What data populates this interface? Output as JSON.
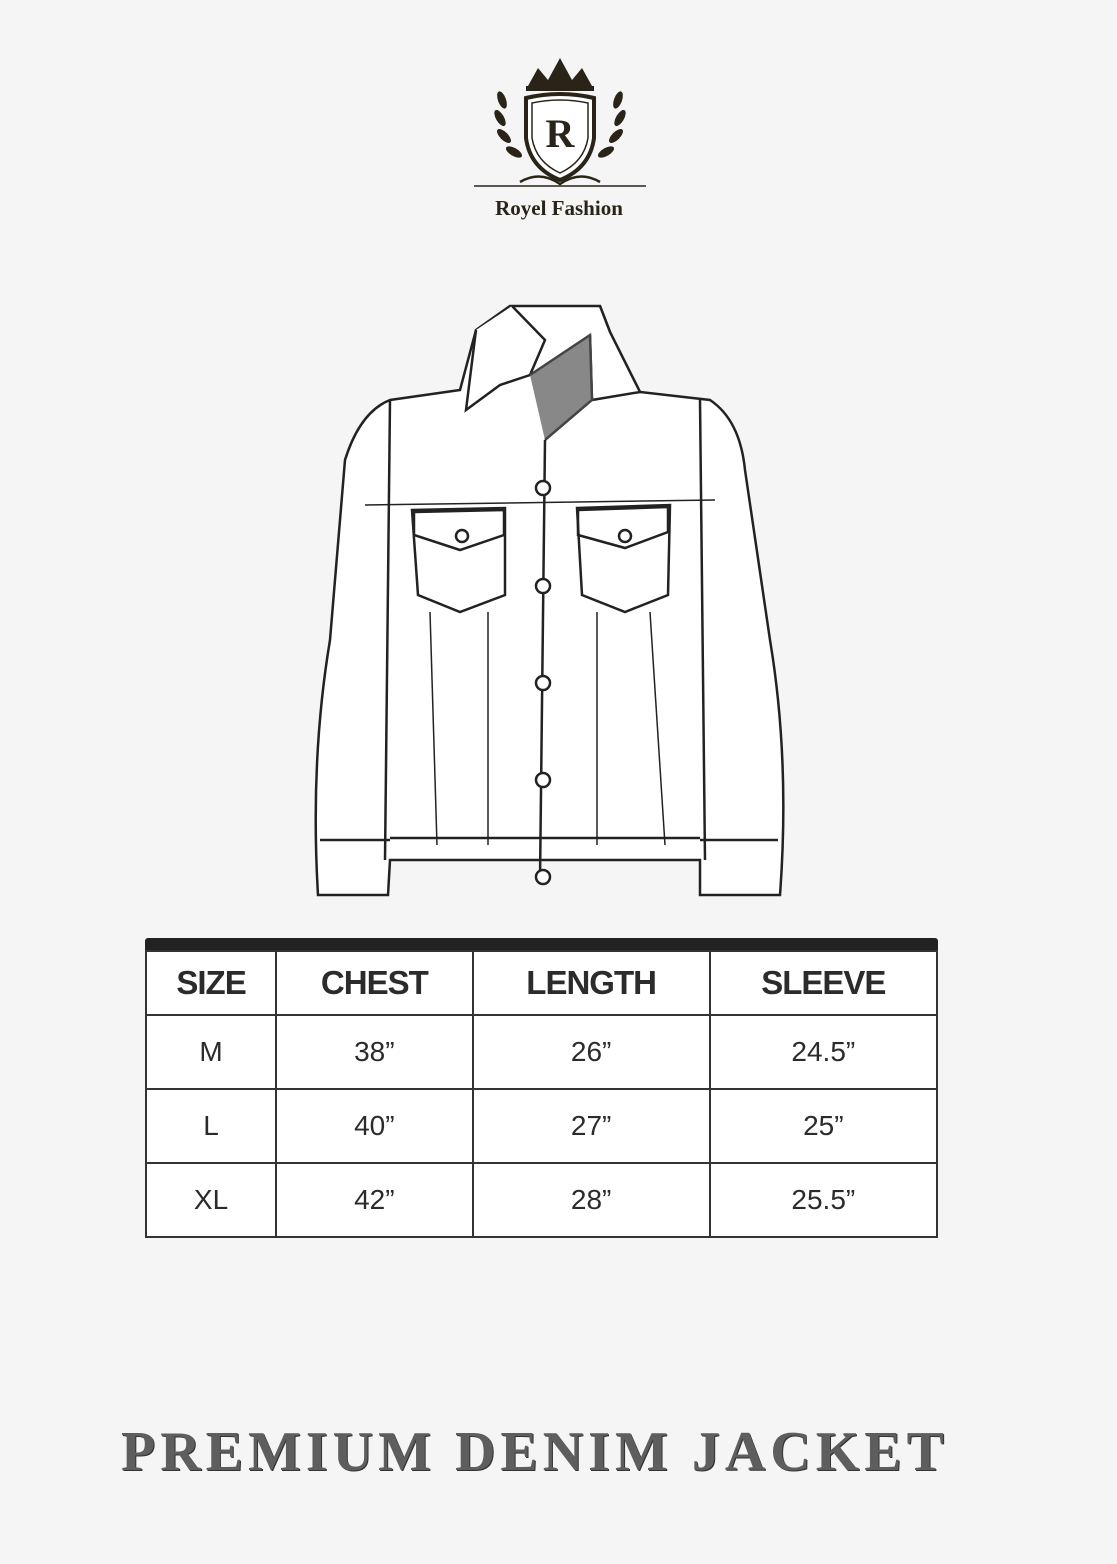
{
  "brand": {
    "name": "Royel Fashion",
    "monogram": "R",
    "color": "#2a2418"
  },
  "size_chart": {
    "headers": [
      "SIZE",
      "CHEST",
      "LENGTH",
      "SLEEVE"
    ],
    "rows": [
      [
        "M",
        "38”",
        "26”",
        "24.5”"
      ],
      [
        "L",
        "40”",
        "27”",
        "25”"
      ],
      [
        "XL",
        "42”",
        "28”",
        "25.5”"
      ]
    ]
  },
  "product_title": "PREMIUM DENIM JACKET"
}
